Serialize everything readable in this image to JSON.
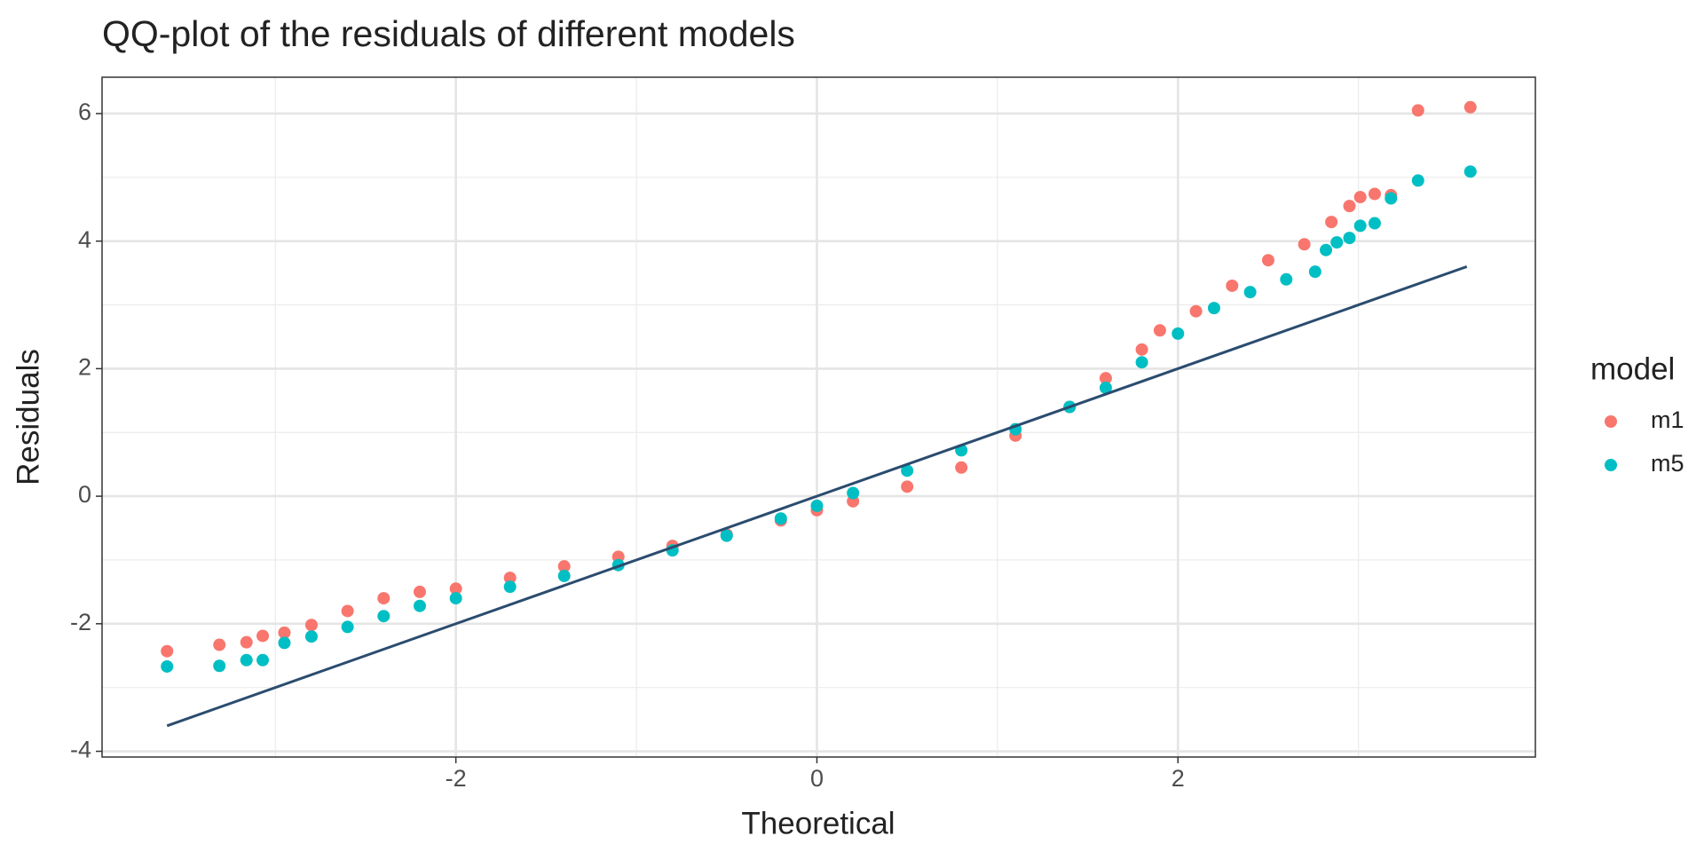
{
  "chart_data": {
    "type": "scatter",
    "title": "QQ-plot of the residuals of different models",
    "x_label": "Theoretical",
    "y_label": "Residuals",
    "legend_title": "model",
    "legend_position": "right",
    "xlim": [
      -3.96,
      3.98
    ],
    "ylim": [
      -4.09,
      6.57
    ],
    "xticks": [
      -2,
      0,
      2
    ],
    "yticks": [
      -4,
      -2,
      0,
      2,
      4,
      6
    ],
    "x_minor_grid": [
      -3,
      -1,
      1,
      3
    ],
    "y_minor_grid": [
      -3,
      -1,
      1,
      3,
      5
    ],
    "grid": true,
    "series": [
      {
        "name": "m1",
        "color": "#F8766D",
        "x": [
          -3.6,
          -3.31,
          -3.16,
          -3.07,
          -2.95,
          -2.8,
          -2.6,
          -2.4,
          -2.2,
          -2.0,
          -1.7,
          -1.4,
          -1.1,
          -0.8,
          -0.5,
          -0.2,
          0,
          0.2,
          0.5,
          0.8,
          1.1,
          1.4,
          1.6,
          1.8,
          1.9,
          2.1,
          2.3,
          2.5,
          2.7,
          2.85,
          2.95,
          3.01,
          3.09,
          3.18,
          3.33,
          3.62
        ],
        "values": [
          -2.43,
          -2.33,
          -2.29,
          -2.19,
          -2.14,
          -2.02,
          -1.8,
          -1.6,
          -1.5,
          -1.45,
          -1.28,
          -1.1,
          -0.95,
          -0.78,
          -0.6,
          -0.38,
          -0.22,
          -0.08,
          0.15,
          0.45,
          0.95,
          1.4,
          1.85,
          2.3,
          2.6,
          2.9,
          3.3,
          3.7,
          3.95,
          4.3,
          4.55,
          4.69,
          4.74,
          4.72,
          6.05,
          6.1
        ]
      },
      {
        "name": "m5",
        "color": "#00BFC4",
        "x": [
          -3.6,
          -3.31,
          -3.16,
          -3.07,
          -2.95,
          -2.8,
          -2.6,
          -2.4,
          -2.2,
          -2.0,
          -1.7,
          -1.4,
          -1.1,
          -0.8,
          -0.5,
          -0.2,
          0,
          0.2,
          0.5,
          0.8,
          1.1,
          1.4,
          1.6,
          1.8,
          2.0,
          2.2,
          2.4,
          2.6,
          2.76,
          2.82,
          2.88,
          2.95,
          3.01,
          3.09,
          3.18,
          3.33,
          3.62
        ],
        "values": [
          -2.67,
          -2.66,
          -2.57,
          -2.57,
          -2.3,
          -2.2,
          -2.05,
          -1.88,
          -1.72,
          -1.6,
          -1.42,
          -1.25,
          -1.08,
          -0.85,
          -0.62,
          -0.35,
          -0.15,
          0.05,
          0.4,
          0.72,
          1.05,
          1.4,
          1.7,
          2.1,
          2.55,
          2.95,
          3.2,
          3.4,
          3.52,
          3.86,
          3.98,
          4.05,
          4.24,
          4.28,
          4.67,
          4.95,
          5.09
        ]
      }
    ],
    "reference_line": {
      "x": [
        -3.6,
        3.6
      ],
      "values": [
        -3.6,
        3.6
      ],
      "color": "#2B4C6F"
    }
  }
}
